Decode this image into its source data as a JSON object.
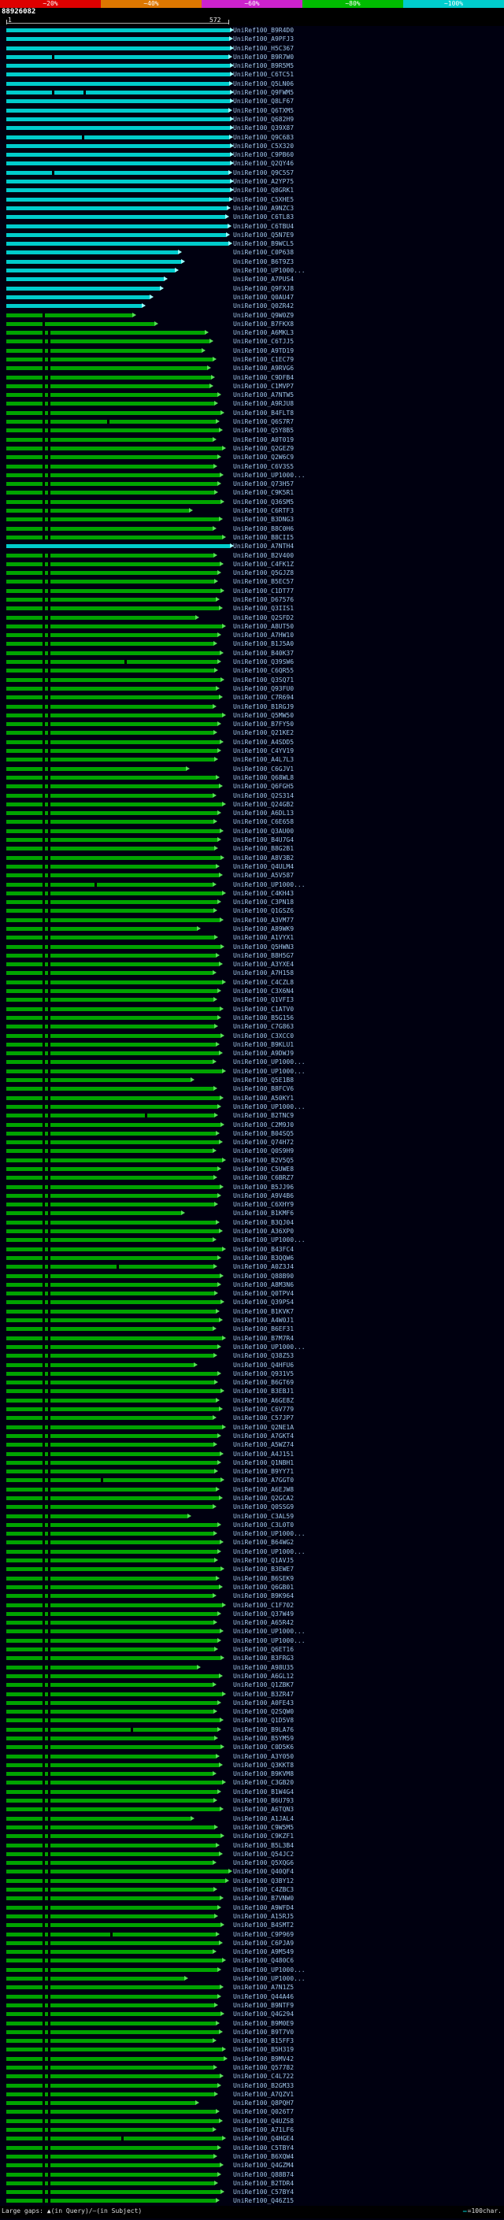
{
  "query_bar": {
    "id": "88926082"
  },
  "legend": {
    "large_gaps": "Large gaps: ▲(in Query)/—(in Subject)",
    "scale_dash": "—",
    "scale_label": "=100char."
  },
  "colors": {
    "bar_high_identity": "#00cccc",
    "bar_mid_identity": "#00a300",
    "tip_high": "#99ffff",
    "tip_mid": "#55dd55",
    "label_text": "#9fc5e8",
    "gap_mark": "#000000"
  },
  "chart_data": {
    "type": "bar",
    "orientation": "horizontal",
    "query": {
      "id": "88926082",
      "ruler_start": "1",
      "ruler_end": "572"
    },
    "identity_scale": {
      "segments": [
        {
          "label": "~20%",
          "color": "#dd0000"
        },
        {
          "label": "~40%",
          "color": "#dd7700"
        },
        {
          "label": "~60%",
          "color": "#cc22cc"
        },
        {
          "label": "~80%",
          "color": "#00bb00"
        },
        {
          "label": "~100%",
          "color": "#00cccc"
        }
      ]
    },
    "default_green_gaps": [
      46,
      53
    ],
    "rows": [
      [
        "UniRef100_B9R4D0",
        284,
        "c",
        []
      ],
      [
        "UniRef100_A9PFJ3",
        283,
        "c",
        []
      ],
      [
        "UniRef100_H5C367",
        284,
        "c",
        []
      ],
      [
        "UniRef100_B9R7W0",
        282,
        "c",
        [
          58
        ]
      ],
      [
        "UniRef100_B9R5M5",
        284,
        "c",
        []
      ],
      [
        "UniRef100_C6TC51",
        284,
        "c",
        []
      ],
      [
        "UniRef100_Q5LN06",
        283,
        "c",
        []
      ],
      [
        "UniRef100_Q9FWM5",
        284,
        "c",
        [
          58,
          98
        ]
      ],
      [
        "UniRef100_Q8LF67",
        284,
        "c",
        []
      ],
      [
        "UniRef100_Q6TXM5",
        282,
        "c",
        []
      ],
      [
        "UniRef100_Q682H9",
        284,
        "c",
        []
      ],
      [
        "UniRef100_Q39X87",
        284,
        "c",
        []
      ],
      [
        "UniRef100_Q9C683",
        283,
        "c",
        [
          96
        ]
      ],
      [
        "UniRef100_C5X320",
        284,
        "c",
        []
      ],
      [
        "UniRef100_C9PB60",
        284,
        "c",
        []
      ],
      [
        "UniRef100_Q2QY46",
        284,
        "c",
        []
      ],
      [
        "UniRef100_Q9C5S7",
        282,
        "c",
        [
          58
        ]
      ],
      [
        "UniRef100_A2YP75",
        284,
        "c",
        []
      ],
      [
        "UniRef100_Q8GRK1",
        284,
        "c",
        []
      ],
      [
        "UniRef100_C5XHE5",
        283,
        "c",
        []
      ],
      [
        "UniRef100_A9NZC3",
        280,
        "c",
        []
      ],
      [
        "UniRef100_C6TL83",
        278,
        "c",
        []
      ],
      [
        "UniRef100_C6TBU4",
        281,
        "c",
        []
      ],
      [
        "UniRef100_Q5N7E9",
        279,
        "c",
        []
      ],
      [
        "UniRef100_B9WCL5",
        282,
        "c",
        []
      ],
      [
        "UniRef100_C0P638",
        218,
        "c",
        []
      ],
      [
        "UniRef100_B6T9Z3",
        222,
        "c",
        []
      ],
      [
        "UniRef100_UP1000...",
        214,
        "c",
        []
      ],
      [
        "UniRef100_A7PUS4",
        200,
        "c",
        []
      ],
      [
        "UniRef100_Q9FXJ8",
        195,
        "c",
        []
      ],
      [
        "UniRef100_Q0AU47",
        182,
        "c",
        []
      ],
      [
        "UniRef100_Q0ZR42",
        172,
        "c",
        []
      ],
      [
        "UniRef100_Q9W0Z9",
        160,
        "g",
        [
          46
        ]
      ],
      [
        "UniRef100_B7FKX8",
        188,
        "g",
        [
          46
        ]
      ],
      [
        "UniRef100_A6MKL3",
        252,
        "g"
      ],
      [
        "UniRef100_C6TJJ5",
        258,
        "g"
      ],
      [
        "UniRef100_A9TD19",
        248,
        "g"
      ],
      [
        "UniRef100_C1EC79",
        262,
        "g"
      ],
      [
        "UniRef100_A9RVG6",
        255,
        "g"
      ],
      [
        "UniRef100_C9DFB4",
        260,
        "g"
      ],
      [
        "UniRef100_C1MVP7",
        258,
        "g"
      ],
      [
        "UniRef100_A7NTW5",
        268,
        "g"
      ],
      [
        "UniRef100_A9RJU8",
        264,
        "g"
      ],
      [
        "UniRef100_B4FLT8",
        272,
        "g"
      ],
      [
        "UniRef100_Q6S7R7",
        266,
        "g",
        [
          46,
          53,
          128
        ]
      ],
      [
        "UniRef100_Q5Y8B5",
        270,
        "g"
      ],
      [
        "UniRef100_A0T019",
        262,
        "g"
      ],
      [
        "UniRef100_Q2GEZ9",
        274,
        "g"
      ],
      [
        "UniRef100_Q2W6C9",
        268,
        "g"
      ],
      [
        "UniRef100_C6V3S5",
        263,
        "g"
      ],
      [
        "UniRef100_UP1000...",
        271,
        "g"
      ],
      [
        "UniRef100_Q73H57",
        268,
        "g"
      ],
      [
        "UniRef100_C9K5R1",
        264,
        "g"
      ],
      [
        "UniRef100_Q36SM5",
        272,
        "g"
      ],
      [
        "UniRef100_C6RTF3",
        232,
        "g"
      ],
      [
        "UniRef100_B3DNG3",
        270,
        "g"
      ],
      [
        "UniRef100_B8C0H6",
        262,
        "g"
      ],
      [
        "UniRef100_B8CII5",
        274,
        "g"
      ],
      [
        "UniRef100_A7NTH4",
        284,
        "c",
        []
      ],
      [
        "UniRef100_B2V400",
        263,
        "g"
      ],
      [
        "UniRef100_C4FK1Z",
        271,
        "g"
      ],
      [
        "UniRef100_Q5GJZ8",
        268,
        "g"
      ],
      [
        "UniRef100_B5EC57",
        264,
        "g"
      ],
      [
        "UniRef100_C1DT77",
        272,
        "g"
      ],
      [
        "UniRef100_D67576",
        266,
        "g"
      ],
      [
        "UniRef100_Q3IIS1",
        270,
        "g"
      ],
      [
        "UniRef100_Q2SFD2",
        240,
        "g"
      ],
      [
        "UniRef100_A8UT50",
        274,
        "g"
      ],
      [
        "UniRef100_A7HW10",
        268,
        "g"
      ],
      [
        "UniRef100_B1J5A0",
        263,
        "g"
      ],
      [
        "UniRef100_B40K37",
        271,
        "g"
      ],
      [
        "UniRef100_Q39SW6",
        268,
        "g",
        [
          46,
          53,
          150
        ]
      ],
      [
        "UniRef100_C6QR55",
        264,
        "g"
      ],
      [
        "UniRef100_Q3SQ71",
        272,
        "g"
      ],
      [
        "UniRef100_Q93FU0",
        266,
        "g"
      ],
      [
        "UniRef100_C7R694",
        270,
        "g"
      ],
      [
        "UniRef100_B1RGJ9",
        262,
        "g"
      ],
      [
        "UniRef100_Q5MW50",
        274,
        "g"
      ],
      [
        "UniRef100_B7FY50",
        268,
        "g"
      ],
      [
        "UniRef100_Q21KE2",
        263,
        "g"
      ],
      [
        "UniRef100_A4SDD5",
        271,
        "g"
      ],
      [
        "UniRef100_C4YV19",
        268,
        "g"
      ],
      [
        "UniRef100_A4L7L3",
        264,
        "g"
      ],
      [
        "UniRef100_C6GJV1",
        228,
        "g"
      ],
      [
        "UniRef100_Q68WL8",
        266,
        "g"
      ],
      [
        "UniRef100_Q6FGH5",
        270,
        "g"
      ],
      [
        "UniRef100_Q2S314",
        262,
        "g"
      ],
      [
        "UniRef100_Q24GB2",
        274,
        "g"
      ],
      [
        "UniRef100_A6DL13",
        268,
        "g"
      ],
      [
        "UniRef100_C6E658",
        263,
        "g"
      ],
      [
        "UniRef100_Q3AU00",
        271,
        "g"
      ],
      [
        "UniRef100_B4U7G4",
        268,
        "g"
      ],
      [
        "UniRef100_B8G2B1",
        264,
        "g"
      ],
      [
        "UniRef100_A8V3B2",
        272,
        "g"
      ],
      [
        "UniRef100_Q4ULM4",
        266,
        "g"
      ],
      [
        "UniRef100_A5V587",
        270,
        "g"
      ],
      [
        "UniRef100_UP1000...",
        262,
        "g",
        [
          46,
          53,
          112
        ]
      ],
      [
        "UniRef100_C4KH43",
        274,
        "g"
      ],
      [
        "UniRef100_C3PN18",
        268,
        "g"
      ],
      [
        "UniRef100_Q1GSZ6",
        263,
        "g"
      ],
      [
        "UniRef100_A3VM77",
        271,
        "g"
      ],
      [
        "UniRef100_A89WK9",
        242,
        "g"
      ],
      [
        "UniRef100_A1VYX1",
        264,
        "g"
      ],
      [
        "UniRef100_Q5HWN3",
        272,
        "g"
      ],
      [
        "UniRef100_B8H5G7",
        266,
        "g"
      ],
      [
        "UniRef100_A3YXE4",
        270,
        "g"
      ],
      [
        "UniRef100_A7H158",
        262,
        "g"
      ],
      [
        "UniRef100_C4CZL8",
        274,
        "g"
      ],
      [
        "UniRef100_C3X6N4",
        268,
        "g"
      ],
      [
        "UniRef100_Q1VFI3",
        263,
        "g"
      ],
      [
        "UniRef100_C1ATV0",
        271,
        "g"
      ],
      [
        "UniRef100_B5G156",
        268,
        "g"
      ],
      [
        "UniRef100_C7G863",
        264,
        "g"
      ],
      [
        "UniRef100_C3XCC0",
        272,
        "g"
      ],
      [
        "UniRef100_B9KLU1",
        266,
        "g"
      ],
      [
        "UniRef100_A9DWJ9",
        270,
        "g"
      ],
      [
        "UniRef100_UP1000...",
        262,
        "g"
      ],
      [
        "UniRef100_UP1000...",
        274,
        "g"
      ],
      [
        "UniRef100_Q5E1B8",
        234,
        "g"
      ],
      [
        "UniRef100_B8FCV6",
        263,
        "g"
      ],
      [
        "UniRef100_A50KY1",
        271,
        "g"
      ],
      [
        "UniRef100_UP1000...",
        268,
        "g"
      ],
      [
        "UniRef100_B2TNC9",
        264,
        "g",
        [
          46,
          53,
          176
        ]
      ],
      [
        "UniRef100_C2M9J0",
        272,
        "g"
      ],
      [
        "UniRef100_B04SQ5",
        266,
        "g"
      ],
      [
        "UniRef100_Q74H72",
        270,
        "g"
      ],
      [
        "UniRef100_Q0S9H9",
        262,
        "g"
      ],
      [
        "UniRef100_B2V5Q5",
        274,
        "g"
      ],
      [
        "UniRef100_C5UWE8",
        268,
        "g"
      ],
      [
        "UniRef100_C6BRZ7",
        263,
        "g"
      ],
      [
        "UniRef100_B5JJ96",
        271,
        "g"
      ],
      [
        "UniRef100_A9V4B6",
        268,
        "g"
      ],
      [
        "UniRef100_C6XHY9",
        264,
        "g"
      ],
      [
        "UniRef100_B1KMF6",
        222,
        "g"
      ],
      [
        "UniRef100_B3QJ04",
        266,
        "g"
      ],
      [
        "UniRef100_A36XP0",
        270,
        "g"
      ],
      [
        "UniRef100_UP1000...",
        262,
        "g"
      ],
      [
        "UniRef100_B43FC4",
        274,
        "g"
      ],
      [
        "UniRef100_B3QQW6",
        268,
        "g"
      ],
      [
        "UniRef100_A0Z3J4",
        263,
        "g",
        [
          46,
          53,
          140
        ]
      ],
      [
        "UniRef100_Q88B90",
        271,
        "g"
      ],
      [
        "UniRef100_A8M3N6",
        268,
        "g"
      ],
      [
        "UniRef100_Q0TPV4",
        264,
        "g"
      ],
      [
        "UniRef100_Q39PS4",
        272,
        "g"
      ],
      [
        "UniRef100_B1KVK7",
        266,
        "g"
      ],
      [
        "UniRef100_A4W0J1",
        270,
        "g"
      ],
      [
        "UniRef100_B6EF31",
        262,
        "g"
      ],
      [
        "UniRef100_B7M7R4",
        274,
        "g"
      ],
      [
        "UniRef100_UP1000...",
        268,
        "g"
      ],
      [
        "UniRef100_Q38Z53",
        263,
        "g"
      ],
      [
        "UniRef100_Q4HFU6",
        238,
        "g"
      ],
      [
        "UniRef100_Q931V5",
        268,
        "g"
      ],
      [
        "UniRef100_B6GT69",
        264,
        "g"
      ],
      [
        "UniRef100_B3EBJ1",
        272,
        "g"
      ],
      [
        "UniRef100_A6GE8Z",
        266,
        "g"
      ],
      [
        "UniRef100_C6V779",
        270,
        "g"
      ],
      [
        "UniRef100_C57JP7",
        262,
        "g"
      ],
      [
        "UniRef100_Q2NE1A",
        274,
        "g"
      ],
      [
        "UniRef100_A7GKT4",
        268,
        "g"
      ],
      [
        "UniRef100_A5WZ74",
        263,
        "g"
      ],
      [
        "UniRef100_A4J151",
        271,
        "g"
      ],
      [
        "UniRef100_Q1NBH1",
        268,
        "g"
      ],
      [
        "UniRef100_B9YY71",
        264,
        "g"
      ],
      [
        "UniRef100_A7GGT0",
        272,
        "g",
        [
          46,
          53,
          120
        ]
      ],
      [
        "UniRef100_A6EJW8",
        266,
        "g"
      ],
      [
        "UniRef100_Q2GCA2",
        270,
        "g"
      ],
      [
        "UniRef100_Q0SSG9",
        262,
        "g"
      ],
      [
        "UniRef100_C3AL59",
        230,
        "g"
      ],
      [
        "UniRef100_C3L0T0",
        268,
        "g"
      ],
      [
        "UniRef100_UP1000...",
        263,
        "g"
      ],
      [
        "UniRef100_B64WG2",
        271,
        "g"
      ],
      [
        "UniRef100_UP1000...",
        268,
        "g"
      ],
      [
        "UniRef100_Q1AVJ5",
        264,
        "g"
      ],
      [
        "UniRef100_B3EWE7",
        272,
        "g"
      ],
      [
        "UniRef100_B6SEK9",
        266,
        "g"
      ],
      [
        "UniRef100_Q6GB01",
        270,
        "g"
      ],
      [
        "UniRef100_B9K964",
        262,
        "g"
      ],
      [
        "UniRef100_C1F702",
        274,
        "g"
      ],
      [
        "UniRef100_Q37W49",
        268,
        "g"
      ],
      [
        "UniRef100_A65R42",
        263,
        "g"
      ],
      [
        "UniRef100_UP1000...",
        271,
        "g"
      ],
      [
        "UniRef100_UP1000...",
        268,
        "g"
      ],
      [
        "UniRef100_Q6ET16",
        264,
        "g"
      ],
      [
        "UniRef100_B3FRG3",
        272,
        "g"
      ],
      [
        "UniRef100_A98U35",
        242,
        "g"
      ],
      [
        "UniRef100_A6GL12",
        270,
        "g"
      ],
      [
        "UniRef100_Q1ZBK7",
        262,
        "g"
      ],
      [
        "UniRef100_B3ZR47",
        274,
        "g"
      ],
      [
        "UniRef100_A0FE43",
        268,
        "g"
      ],
      [
        "UniRef100_Q2SQW0",
        263,
        "g"
      ],
      [
        "UniRef100_Q1D5V8",
        271,
        "g"
      ],
      [
        "UniRef100_B9LA76",
        268,
        "g",
        [
          46,
          53,
          158
        ]
      ],
      [
        "UniRef100_B5YM59",
        264,
        "g"
      ],
      [
        "UniRef100_C0D5K6",
        272,
        "g"
      ],
      [
        "UniRef100_A3Y050",
        266,
        "g"
      ],
      [
        "UniRef100_Q3KKT8",
        270,
        "g"
      ],
      [
        "UniRef100_B9KVM8",
        262,
        "g"
      ],
      [
        "UniRef100_C3GB20",
        274,
        "g"
      ],
      [
        "UniRef100_B1W4G4",
        268,
        "g"
      ],
      [
        "UniRef100_B6U793",
        263,
        "g"
      ],
      [
        "UniRef100_A6TQN3",
        271,
        "g"
      ],
      [
        "UniRef100_A1JAL4",
        234,
        "g"
      ],
      [
        "UniRef100_C9W5M5",
        264,
        "g"
      ],
      [
        "UniRef100_C9KZF1",
        272,
        "g"
      ],
      [
        "UniRef100_B5L3B4",
        266,
        "g"
      ],
      [
        "UniRef100_Q54JC2",
        270,
        "g"
      ],
      [
        "UniRef100_Q5XQG6",
        262,
        "g"
      ],
      [
        "UniRef100_Q40QF4",
        282,
        "g"
      ],
      [
        "UniRef100_Q3BY12",
        278,
        "g"
      ],
      [
        "UniRef100_C4ZBC3",
        263,
        "g"
      ],
      [
        "UniRef100_B7VNW0",
        271,
        "g"
      ],
      [
        "UniRef100_A9WFD4",
        268,
        "g"
      ],
      [
        "UniRef100_A15RJ5",
        264,
        "g"
      ],
      [
        "UniRef100_B4SMT2",
        272,
        "g"
      ],
      [
        "UniRef100_C9P969",
        266,
        "g",
        [
          46,
          53,
          132
        ]
      ],
      [
        "UniRef100_C6PJA9",
        270,
        "g"
      ],
      [
        "UniRef100_A9M549",
        262,
        "g"
      ],
      [
        "UniRef100_Q480C6",
        274,
        "g"
      ],
      [
        "UniRef100_UP1000...",
        268,
        "g"
      ],
      [
        "UniRef100_UP1000...",
        226,
        "g"
      ],
      [
        "UniRef100_A7N1Z5",
        271,
        "g"
      ],
      [
        "UniRef100_Q44A46",
        268,
        "g"
      ],
      [
        "UniRef100_B9NTF9",
        264,
        "g"
      ],
      [
        "UniRef100_Q4G294",
        272,
        "g"
      ],
      [
        "UniRef100_B9M0E9",
        266,
        "g"
      ],
      [
        "UniRef100_B9T7V0",
        270,
        "g"
      ],
      [
        "UniRef100_B15FF3",
        262,
        "g"
      ],
      [
        "UniRef100_B5H319",
        274,
        "g"
      ],
      [
        "UniRef100_B9MV42",
        276,
        "g"
      ],
      [
        "UniRef100_Q57782",
        263,
        "g"
      ],
      [
        "UniRef100_C4L722",
        271,
        "g"
      ],
      [
        "UniRef100_B2GM33",
        268,
        "g"
      ],
      [
        "UniRef100_A7QZV1",
        264,
        "g"
      ],
      [
        "UniRef100_Q8PQH7",
        240,
        "g"
      ],
      [
        "UniRef100_Q026T7",
        266,
        "g"
      ],
      [
        "UniRef100_Q4UZS8",
        270,
        "g"
      ],
      [
        "UniRef100_A71LF6",
        262,
        "g"
      ],
      [
        "UniRef100_Q4HGE4",
        274,
        "g",
        [
          46,
          53,
          146
        ]
      ],
      [
        "UniRef100_C5TBY4",
        268,
        "g"
      ],
      [
        "UniRef100_B6XQW4",
        263,
        "g"
      ],
      [
        "UniRef100_Q4GZM4",
        271,
        "g"
      ],
      [
        "UniRef100_Q88B74",
        268,
        "g"
      ],
      [
        "UniRef100_B2TDR4",
        264,
        "g"
      ],
      [
        "UniRef100_C57BY4",
        272,
        "g"
      ],
      [
        "UniRef100_Q46Z15",
        266,
        "g"
      ]
    ]
  }
}
